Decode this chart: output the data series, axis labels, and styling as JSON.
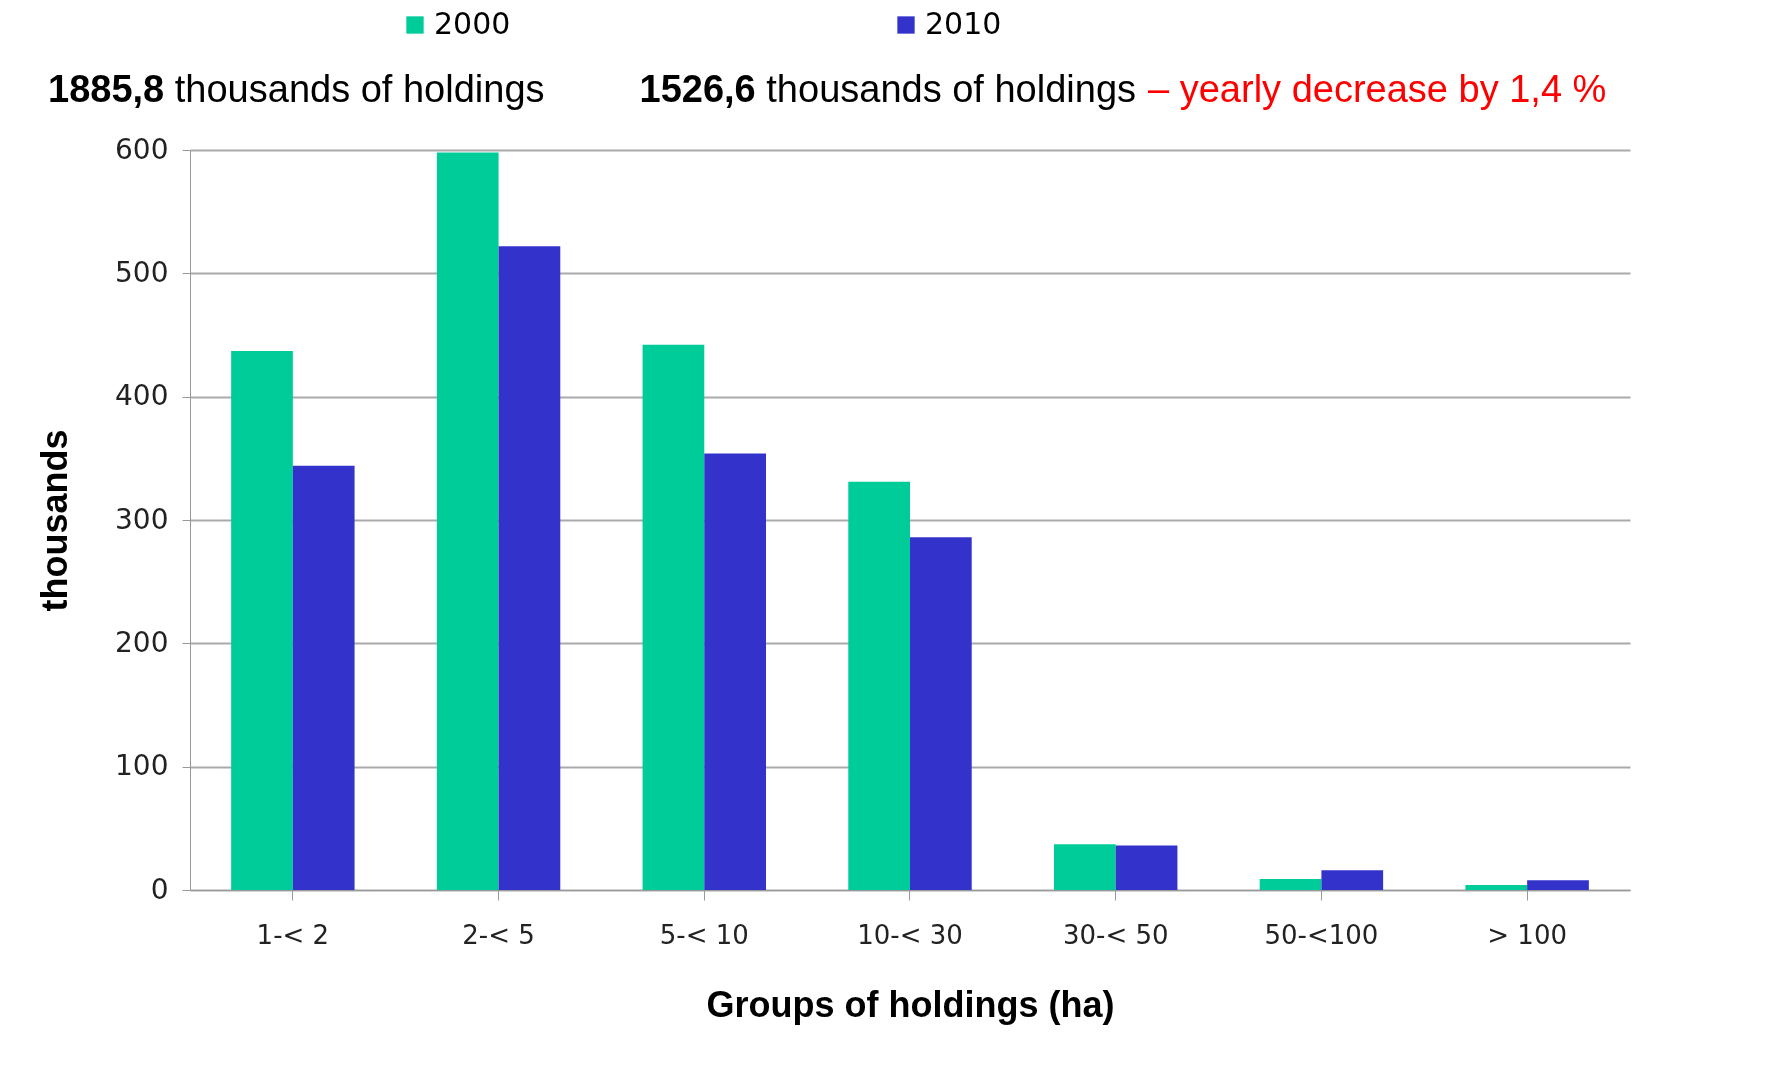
{
  "chart_data": {
    "type": "bar",
    "xlabel": "Groups of holdings (ha)",
    "ylabel": "thousands",
    "categories": [
      "1-< 2",
      "2-< 5",
      "5-< 10",
      "10-< 30",
      "30-< 50",
      "50-<100",
      "> 100"
    ],
    "series": [
      {
        "name": "2000",
        "color": "#00cc99",
        "values": [
          437,
          598,
          442,
          331,
          37,
          9,
          4
        ]
      },
      {
        "name": "2010",
        "color": "#3333cc",
        "values": [
          344,
          522,
          354,
          286,
          36,
          16,
          8
        ]
      }
    ],
    "ylim": [
      0,
      600
    ],
    "yticks": [
      0,
      100,
      200,
      300,
      400,
      500,
      600
    ],
    "grid": "y",
    "legend": "top",
    "annotations": [
      "1885,8 thousands of holdings",
      "1526,6 thousands of holdings",
      "– yearly decrease by 1,4 %"
    ]
  }
}
